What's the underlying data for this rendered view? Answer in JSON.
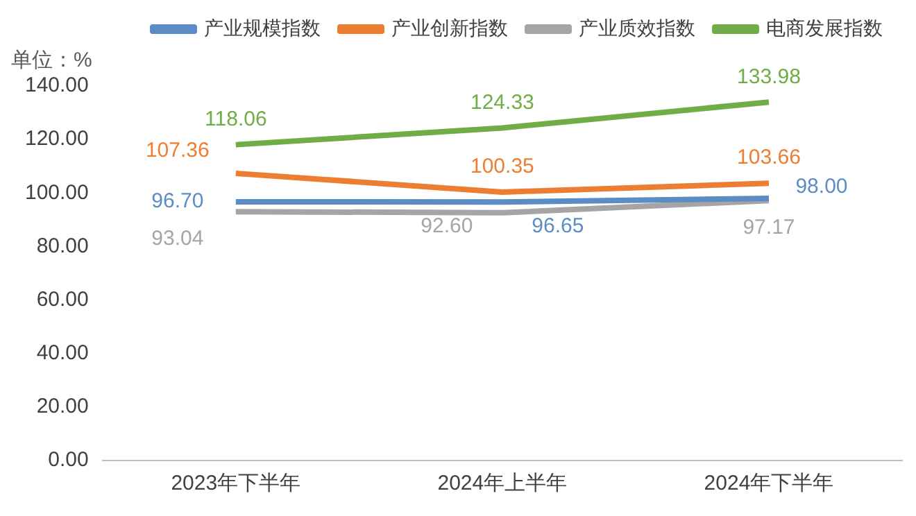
{
  "chart_data": {
    "type": "line",
    "ylabel": "单位：%",
    "categories": [
      "2023年下半年",
      "2024年上半年",
      "2024年下半年"
    ],
    "series": [
      {
        "name": "产业规模指数",
        "color": "#5b8cc4",
        "values": [
          96.7,
          96.65,
          98.0
        ],
        "value_labels": [
          "96.70",
          "96.65",
          "98.00"
        ]
      },
      {
        "name": "产业创新指数",
        "color": "#ed7d31",
        "values": [
          107.36,
          100.35,
          103.66
        ],
        "value_labels": [
          "107.36",
          "100.35",
          "103.66"
        ]
      },
      {
        "name": "产业质效指数",
        "color": "#a5a5a5",
        "values": [
          93.04,
          92.6,
          97.17
        ],
        "value_labels": [
          "93.04",
          "92.60",
          "97.17"
        ]
      },
      {
        "name": "电商发展指数",
        "color": "#70ad47",
        "values": [
          118.06,
          124.33,
          133.98
        ],
        "value_labels": [
          "118.06",
          "124.33",
          "133.98"
        ]
      }
    ],
    "ylim": [
      0,
      140
    ],
    "yticks": [
      {
        "value": 0,
        "label": "0.00"
      },
      {
        "value": 20,
        "label": "20.00"
      },
      {
        "value": 40,
        "label": "40.00"
      },
      {
        "value": 60,
        "label": "60.00"
      },
      {
        "value": 80,
        "label": "80.00"
      },
      {
        "value": 100,
        "label": "100.00"
      },
      {
        "value": 120,
        "label": "120.00"
      },
      {
        "value": 140,
        "label": "140.00"
      }
    ],
    "legend": "top",
    "marker": "none",
    "line_style": "solid"
  }
}
